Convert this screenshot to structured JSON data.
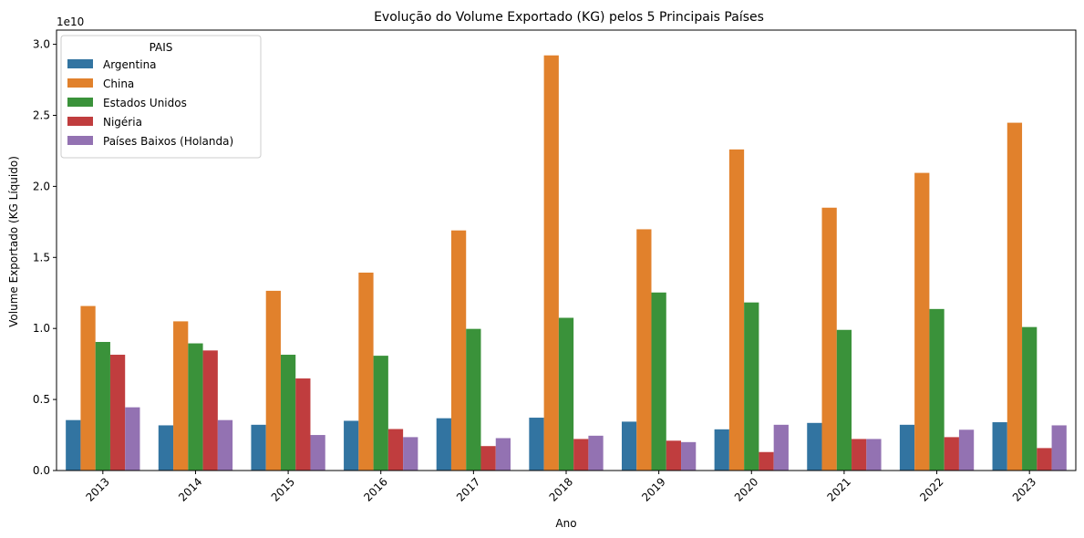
{
  "chart_data": {
    "type": "bar",
    "title": "Evolução do Volume Exportado (KG) pelos 5 Principais Países",
    "xlabel": "Ano",
    "ylabel": "Volume Exportado (KG Líquido)",
    "y_offset_label": "1e10",
    "y_scale": 10000000000,
    "ylim": [
      0,
      3.1
    ],
    "yticks": [
      0.0,
      0.5,
      1.0,
      1.5,
      2.0,
      2.5,
      3.0
    ],
    "ytick_labels": [
      "0.0",
      "0.5",
      "1.0",
      "1.5",
      "2.0",
      "2.5",
      "3.0"
    ],
    "grid": false,
    "legend": {
      "title": "PAIS",
      "placement": "top-left"
    },
    "categories": [
      "2013",
      "2014",
      "2015",
      "2016",
      "2017",
      "2018",
      "2019",
      "2020",
      "2021",
      "2022",
      "2023"
    ],
    "series": [
      {
        "name": "Argentina",
        "color": "#3274a1",
        "values": [
          0.355,
          0.318,
          0.322,
          0.35,
          0.368,
          0.372,
          0.344,
          0.29,
          0.335,
          0.322,
          0.34
        ]
      },
      {
        "name": "China",
        "color": "#e1812c",
        "values": [
          1.158,
          1.05,
          1.265,
          1.393,
          1.69,
          2.922,
          1.698,
          2.26,
          1.85,
          2.095,
          2.448
        ]
      },
      {
        "name": "Estados Unidos",
        "color": "#3a923a",
        "values": [
          0.905,
          0.895,
          0.815,
          0.808,
          0.997,
          1.075,
          1.253,
          1.183,
          0.99,
          1.137,
          1.01
        ]
      },
      {
        "name": "Nigéria",
        "color": "#c03d3e",
        "values": [
          0.815,
          0.845,
          0.648,
          0.292,
          0.172,
          0.222,
          0.21,
          0.13,
          0.222,
          0.235,
          0.158
        ]
      },
      {
        "name": "Países Baixos (Holanda)",
        "color": "#9372b2",
        "values": [
          0.445,
          0.355,
          0.25,
          0.235,
          0.228,
          0.245,
          0.2,
          0.322,
          0.222,
          0.287,
          0.318
        ]
      }
    ]
  }
}
